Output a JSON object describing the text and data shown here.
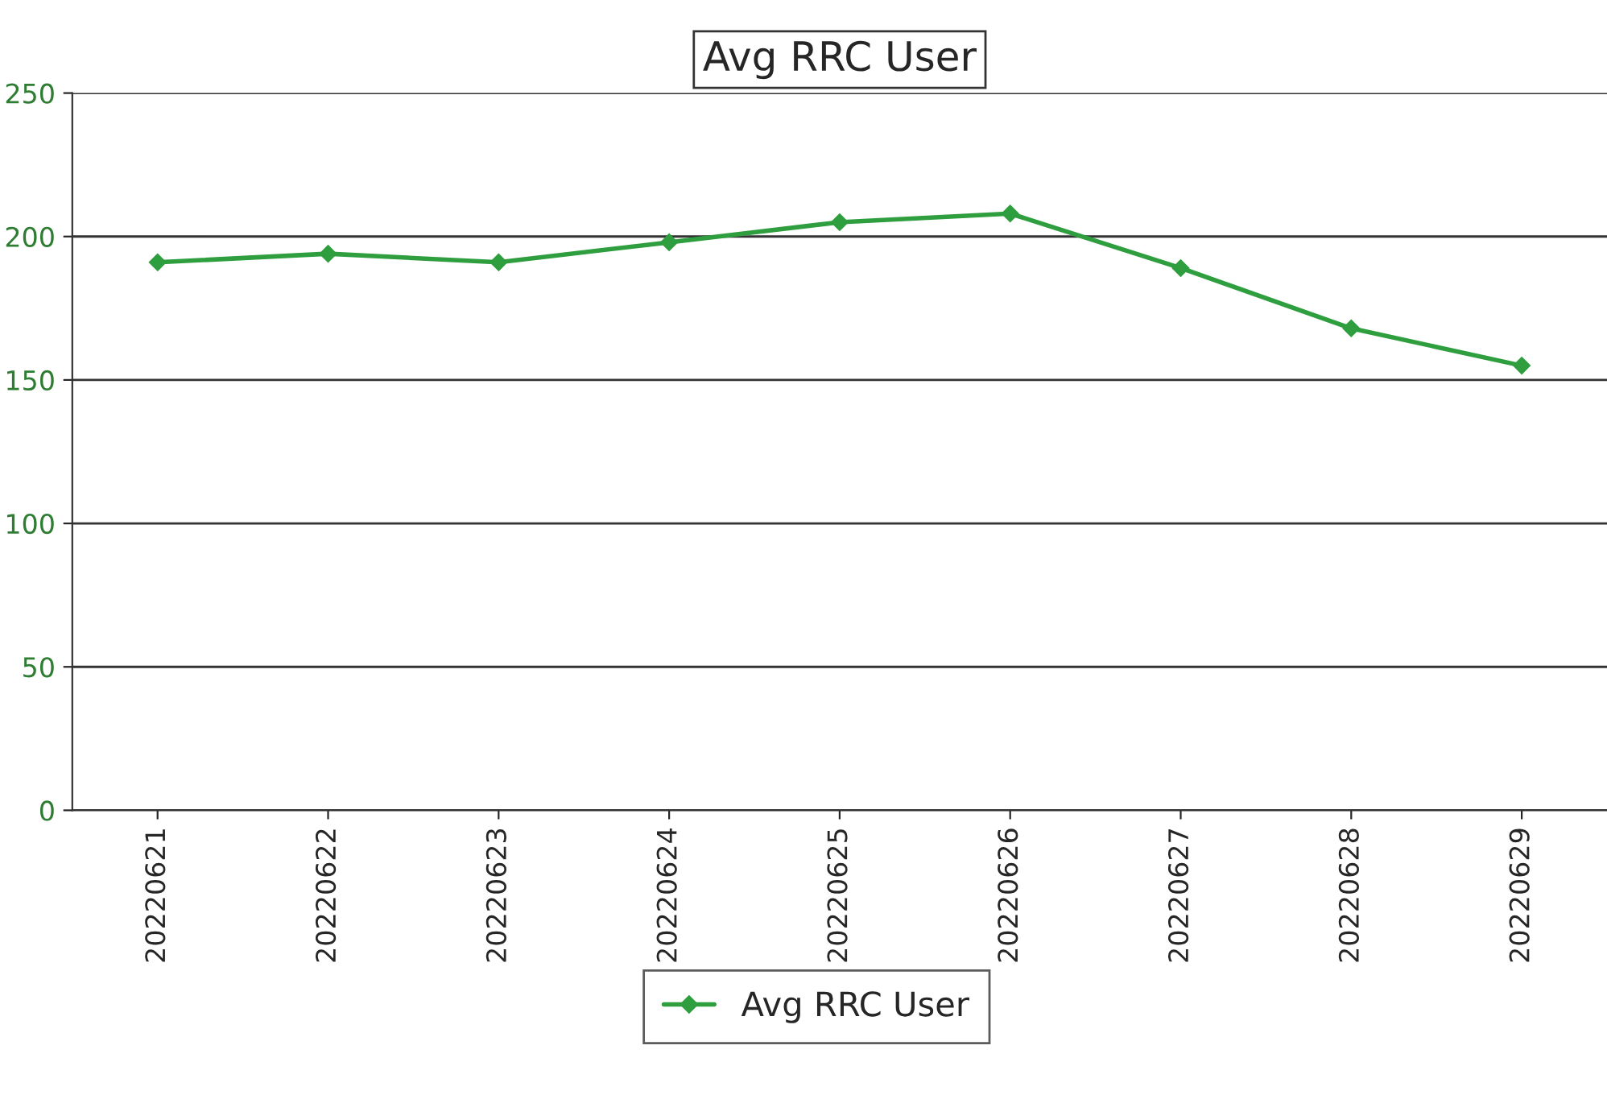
{
  "chart_data": {
    "type": "line",
    "title": "Avg RRC User",
    "categories": [
      "20220621",
      "20220622",
      "20220623",
      "20220624",
      "20220625",
      "20220626",
      "20220627",
      "20220628",
      "20220629"
    ],
    "series": [
      {
        "name": "Avg RRC User",
        "color": "#2e9e3e",
        "values": [
          191,
          194,
          191,
          198,
          205,
          208,
          189,
          168,
          155
        ]
      }
    ],
    "ylim": [
      0,
      250
    ],
    "yticks": [
      0,
      50,
      100,
      150,
      200,
      250
    ],
    "grid": "y",
    "legend": "bottom",
    "marker": "diamond",
    "line_style": "solid"
  }
}
